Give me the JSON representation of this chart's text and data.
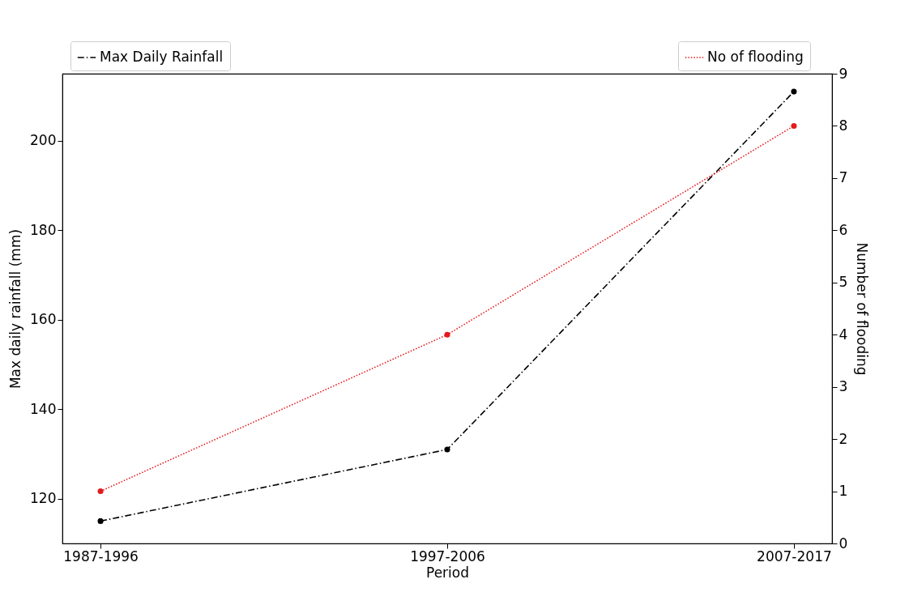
{
  "chart_data": {
    "type": "line",
    "xlabel": "Period",
    "ylabel": "Max daily rainfall (mm)",
    "y2label": "Number of flooding",
    "categories": [
      "1987-1996",
      "1997-2006",
      "2007-2017"
    ],
    "series": [
      {
        "name": "Max Daily Rainfall",
        "color": "#000000",
        "line_style": "dashed",
        "values": [
          115,
          131,
          211
        ]
      },
      {
        "name": "No of flooding",
        "color": "#e41a1c",
        "line_style": "dotted",
        "axis": "y2",
        "values": [
          1,
          4,
          8
        ]
      }
    ],
    "ylim": [
      110,
      215
    ],
    "yticks": [
      120,
      140,
      160,
      180,
      200
    ],
    "y2lim": [
      0,
      9
    ],
    "y2ticks": [
      0,
      1,
      2,
      3,
      4,
      5,
      6,
      7,
      8,
      9
    ],
    "marker": "circle",
    "grid": false,
    "legend": "top"
  }
}
